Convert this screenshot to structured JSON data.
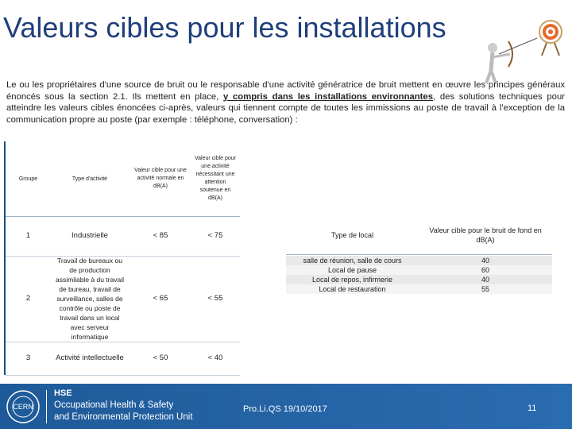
{
  "title": "Valeurs cibles pour les installations",
  "paragraph": {
    "before": "Le ou les propriétaires d'une source de bruit ou le responsable d'une activité génératrice de bruit mettent en œuvre les principes généraux énoncés sous la section 2.1. Ils mettent en place, ",
    "underlined": "y compris dans les installations environnantes",
    "after": ",  des solutions techniques pour  atteindre les valeurs cibles  énoncées ci-après, valeurs qui tiennent compte de toutes les immissions au poste de travail à l'exception de la communication propre au poste (par exemple : téléphone, conversation) :"
  },
  "left_table": {
    "headers": [
      "Groupe",
      "Type d'activité",
      "Valeur cible pour une activité normale en dB(A)",
      "Valeur cible pour une activité nécessitant une attention soutenue en dB(A)"
    ],
    "rows": [
      [
        "1",
        "Industrielle",
        "< 85",
        "< 75"
      ],
      [
        "2",
        "Travail de bureaux ou de production assimilable à du travail de bureau, travail de surveillance, salles de contrôle ou poste de travail dans un local avec serveur informatique",
        "< 65",
        "< 55"
      ],
      [
        "3",
        "Activité intellectuelle",
        "< 50",
        "< 40"
      ]
    ]
  },
  "right_table": {
    "headers": [
      "Type de local",
      "Valeur cible pour le bruit de fond en dB(A)"
    ],
    "rows": [
      [
        "salle de réunion, salle de cours",
        "40"
      ],
      [
        "Local de pause",
        "60"
      ],
      [
        "Local de repos, infirmerie",
        "40"
      ],
      [
        "Local de restauration",
        "55"
      ]
    ]
  },
  "footer": {
    "logo": "CERN",
    "org": [
      "HSE",
      "Occupational Health & Safety",
      "and Environmental Protection Unit"
    ],
    "event": "Pro.Li.QS 19/10/2017",
    "page": "11"
  }
}
